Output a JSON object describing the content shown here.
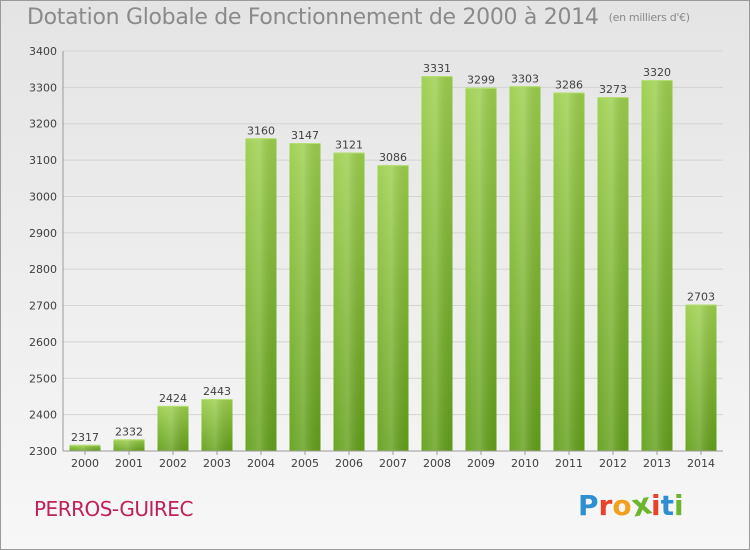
{
  "header": {
    "title": "Dotation Globale de Fonctionnement de 2000 à 2014",
    "subtitle": "(en milliers d'€)"
  },
  "footer": {
    "commune": "PERROS-GUIREC",
    "brand": "Proxiti",
    "brand_colors": [
      "#2e8fd1",
      "#e8432a",
      "#f2a11f",
      "#6cb52d",
      "#e8432a",
      "#2e8fd1",
      "#6cb52d"
    ]
  },
  "colors": {
    "bar_top": "#9ccf4c",
    "bar_bottom": "#63a01a",
    "background_top": "#e4e4e4",
    "background_bottom": "#f7f7f7",
    "grid": "#d4d4d4",
    "text": "#404040",
    "commune": "#c0205a"
  },
  "chart_data": {
    "type": "bar",
    "categories": [
      "2000",
      "2001",
      "2002",
      "2003",
      "2004",
      "2005",
      "2006",
      "2007",
      "2008",
      "2009",
      "2010",
      "2011",
      "2012",
      "2013",
      "2014"
    ],
    "values": [
      2317,
      2332,
      2424,
      2443,
      3160,
      3147,
      3121,
      3086,
      3331,
      3299,
      3303,
      3286,
      3273,
      3320,
      2703
    ],
    "title": "Dotation Globale de Fonctionnement de 2000 à 2014",
    "subtitle": "(en milliers d'€)",
    "ylim": [
      2300,
      3400
    ],
    "yticks": [
      2300,
      2400,
      2500,
      2600,
      2700,
      2800,
      2900,
      3000,
      3100,
      3200,
      3300,
      3400
    ],
    "grid": true,
    "data_labels": true,
    "legend": "none"
  }
}
